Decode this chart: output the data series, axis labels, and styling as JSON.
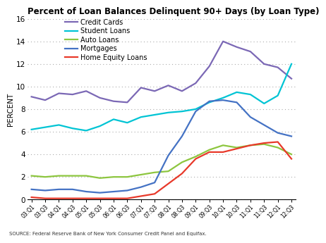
{
  "title": "Percent of Loan Balances Delinquent 90+ Days (by Loan Type)",
  "ylabel": "PERCENT",
  "source": "SOURCE: Federal Reserve Bank of New York Consumer Credit Panel and Equifax.",
  "ylim": [
    0,
    16
  ],
  "yticks": [
    0,
    2,
    4,
    6,
    8,
    10,
    12,
    14,
    16
  ],
  "x_labels": [
    "03:Q1",
    "03:Q3",
    "04:Q1",
    "04:Q3",
    "05:Q1",
    "05:Q3",
    "06:Q1",
    "06:Q3",
    "07:Q1",
    "07:Q3",
    "08:Q1",
    "08:Q3",
    "09:Q1",
    "09:Q3",
    "10:Q1",
    "10:Q3",
    "11:Q1",
    "11:Q3",
    "12:Q1",
    "12:Q3"
  ],
  "series": {
    "Credit Cards": {
      "color": "#7B68B5",
      "linewidth": 1.6,
      "values": [
        9.1,
        8.8,
        9.4,
        9.3,
        9.6,
        9.0,
        8.7,
        8.6,
        9.9,
        9.6,
        10.1,
        9.6,
        10.3,
        11.8,
        14.0,
        13.5,
        13.1,
        12.0,
        11.7,
        10.7
      ]
    },
    "Student Loans": {
      "color": "#00C4D4",
      "linewidth": 1.6,
      "values": [
        6.2,
        6.4,
        6.6,
        6.3,
        6.1,
        6.5,
        7.1,
        6.8,
        7.3,
        7.5,
        7.7,
        7.8,
        8.0,
        8.6,
        9.0,
        9.5,
        9.3,
        8.5,
        9.2,
        12.0
      ]
    },
    "Auto Loans": {
      "color": "#8DC63F",
      "linewidth": 1.6,
      "values": [
        2.1,
        2.0,
        2.1,
        2.1,
        2.1,
        1.9,
        2.0,
        2.0,
        2.2,
        2.4,
        2.5,
        3.3,
        3.8,
        4.4,
        4.8,
        4.6,
        4.8,
        4.9,
        4.6,
        4.0
      ]
    },
    "Mortgages": {
      "color": "#4472C4",
      "linewidth": 1.6,
      "values": [
        0.9,
        0.8,
        0.9,
        0.9,
        0.7,
        0.6,
        0.7,
        0.8,
        1.1,
        1.5,
        3.9,
        5.6,
        7.8,
        8.7,
        8.8,
        8.6,
        7.3,
        6.6,
        5.9,
        5.6
      ]
    },
    "Home Equity Loans": {
      "color": "#E8392A",
      "linewidth": 1.6,
      "values": [
        0.2,
        0.1,
        0.1,
        0.1,
        0.1,
        0.1,
        0.1,
        0.1,
        0.3,
        0.5,
        1.4,
        2.3,
        3.6,
        4.2,
        4.2,
        4.5,
        4.8,
        5.0,
        5.1,
        3.6
      ]
    }
  }
}
